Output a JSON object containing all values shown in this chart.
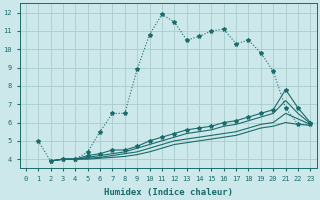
{
  "xlabel": "Humidex (Indice chaleur)",
  "bg_color": "#cce8ea",
  "grid_color": "#aacccc",
  "line_color": "#1a6b6b",
  "xlim": [
    -0.5,
    23.5
  ],
  "ylim": [
    3.5,
    12.5
  ],
  "xticks": [
    0,
    1,
    2,
    3,
    4,
    5,
    6,
    7,
    8,
    9,
    10,
    11,
    12,
    13,
    14,
    15,
    16,
    17,
    18,
    19,
    20,
    21,
    22,
    23
  ],
  "yticks": [
    4,
    5,
    6,
    7,
    8,
    9,
    10,
    11,
    12
  ],
  "lines": [
    {
      "x": [
        1,
        2,
        3,
        4,
        5,
        6,
        7,
        8,
        9,
        10,
        11,
        12,
        13,
        14,
        15,
        16,
        17,
        18,
        19,
        20,
        21,
        22,
        23
      ],
      "y": [
        5,
        3.9,
        4.0,
        4.0,
        4.4,
        5.5,
        6.5,
        6.5,
        8.9,
        10.8,
        11.9,
        11.5,
        10.5,
        10.7,
        11.0,
        11.1,
        10.3,
        10.5,
        9.8,
        8.8,
        6.8,
        5.9,
        5.9
      ],
      "style": "dotted",
      "marker": true
    },
    {
      "x": [
        2,
        3,
        4,
        5,
        6,
        7,
        8,
        9,
        10,
        11,
        12,
        13,
        14,
        15,
        16,
        17,
        18,
        19,
        20,
        21,
        22,
        23
      ],
      "y": [
        3.9,
        4.0,
        4.0,
        4.2,
        4.3,
        4.5,
        4.5,
        4.7,
        5.0,
        5.2,
        5.4,
        5.6,
        5.7,
        5.8,
        6.0,
        6.1,
        6.3,
        6.5,
        6.7,
        7.8,
        6.8,
        6.0
      ],
      "style": "solid",
      "marker": true
    },
    {
      "x": [
        2,
        3,
        4,
        5,
        6,
        7,
        8,
        9,
        10,
        11,
        12,
        13,
        14,
        15,
        16,
        17,
        18,
        19,
        20,
        21,
        22,
        23
      ],
      "y": [
        3.9,
        4.0,
        4.0,
        4.1,
        4.2,
        4.3,
        4.4,
        4.6,
        4.8,
        5.0,
        5.2,
        5.4,
        5.5,
        5.6,
        5.8,
        5.9,
        6.1,
        6.3,
        6.5,
        7.2,
        6.5,
        5.95
      ],
      "style": "solid",
      "marker": false
    },
    {
      "x": [
        2,
        3,
        4,
        5,
        6,
        7,
        8,
        9,
        10,
        11,
        12,
        13,
        14,
        15,
        16,
        17,
        18,
        19,
        20,
        21,
        22,
        23
      ],
      "y": [
        3.9,
        4.0,
        4.0,
        4.05,
        4.1,
        4.2,
        4.3,
        4.4,
        4.6,
        4.8,
        5.0,
        5.1,
        5.2,
        5.3,
        5.4,
        5.5,
        5.7,
        5.9,
        6.0,
        6.5,
        6.2,
        5.9
      ],
      "style": "solid",
      "marker": false
    },
    {
      "x": [
        2,
        3,
        4,
        5,
        6,
        7,
        8,
        9,
        10,
        11,
        12,
        13,
        14,
        15,
        16,
        17,
        18,
        19,
        20,
        21,
        22,
        23
      ],
      "y": [
        3.9,
        4.0,
        4.0,
        4.0,
        4.05,
        4.1,
        4.15,
        4.25,
        4.4,
        4.6,
        4.8,
        4.9,
        5.0,
        5.1,
        5.2,
        5.3,
        5.5,
        5.7,
        5.8,
        6.0,
        5.9,
        5.85
      ],
      "style": "solid",
      "marker": false
    }
  ]
}
